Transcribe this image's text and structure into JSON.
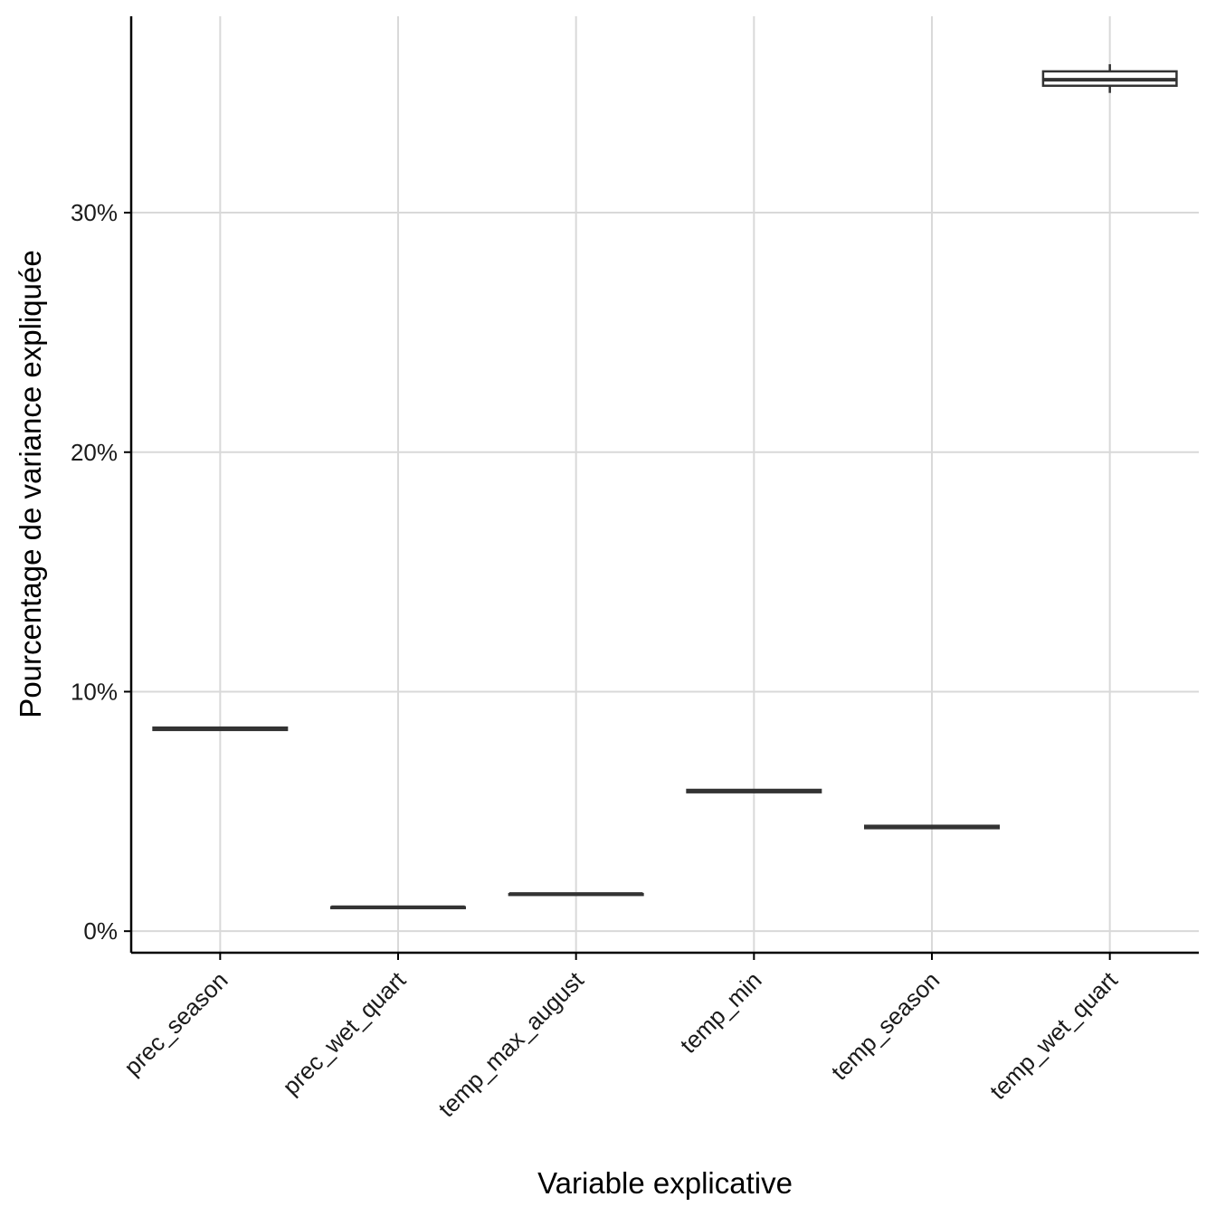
{
  "chart_data": {
    "type": "boxplot",
    "xlabel": "Variable explicative",
    "ylabel": "Pourcentage de variance expliquée",
    "ylim": [
      -0.9,
      38.2
    ],
    "yticks": [
      0,
      10,
      20,
      30
    ],
    "ytick_labels": [
      "0%",
      "10%",
      "20%",
      "30%"
    ],
    "grid": true,
    "categories": [
      "prec_season",
      "prec_wet_quart",
      "temp_max_august",
      "temp_min",
      "temp_season",
      "temp_wet_quart"
    ],
    "boxes": [
      {
        "name": "prec_season",
        "min": 8.4,
        "q1": 8.4,
        "median": 8.45,
        "q3": 8.5,
        "max": 8.5
      },
      {
        "name": "prec_wet_quart",
        "min": 1.0,
        "q1": 1.0,
        "median": 1.0,
        "q3": 1.0,
        "max": 1.0
      },
      {
        "name": "temp_max_august",
        "min": 1.55,
        "q1": 1.55,
        "median": 1.55,
        "q3": 1.55,
        "max": 1.55
      },
      {
        "name": "temp_min",
        "min": 5.8,
        "q1": 5.8,
        "median": 5.85,
        "q3": 5.9,
        "max": 5.9
      },
      {
        "name": "temp_season",
        "min": 4.3,
        "q1": 4.3,
        "median": 4.35,
        "q3": 4.4,
        "max": 4.4
      },
      {
        "name": "temp_wet_quart",
        "min": 35.0,
        "q1": 35.3,
        "median": 35.55,
        "q3": 35.9,
        "max": 36.2
      }
    ]
  },
  "colors": {
    "box_stroke": "#333333",
    "box_fill": "#ffffff",
    "grid": "#d9d9d9",
    "axis": "#000000"
  }
}
